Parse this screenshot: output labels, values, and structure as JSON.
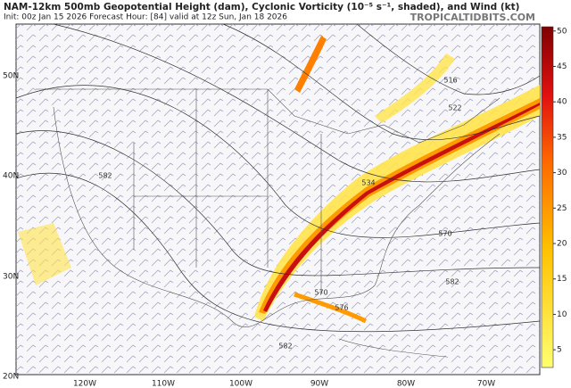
{
  "header": {
    "title": "NAM-12km 500mb Geopotential Height (dam), Cyclonic Vorticity (10⁻⁵ s⁻¹, shaded), and Wind (kt)",
    "subtitle": "Init: 00z Jan 15 2026   Forecast Hour: [84]   valid at 12z Sun, Jan 18 2026",
    "site": "TROPICALTIDBITS.COM"
  },
  "map": {
    "lat_labels": [
      "50N",
      "40N",
      "30N",
      "20N"
    ],
    "lon_labels": [
      "120W",
      "110W",
      "100W",
      "90W",
      "80W",
      "70W"
    ],
    "contour_labels": [
      "582",
      "534",
      "522",
      "516",
      "570",
      "582",
      "570",
      "576",
      "582"
    ]
  },
  "colorbar": {
    "lim": [
      2.5,
      50.6
    ],
    "ticks": [
      5,
      10,
      15,
      20,
      25,
      30,
      35,
      40,
      45,
      50
    ]
  }
}
